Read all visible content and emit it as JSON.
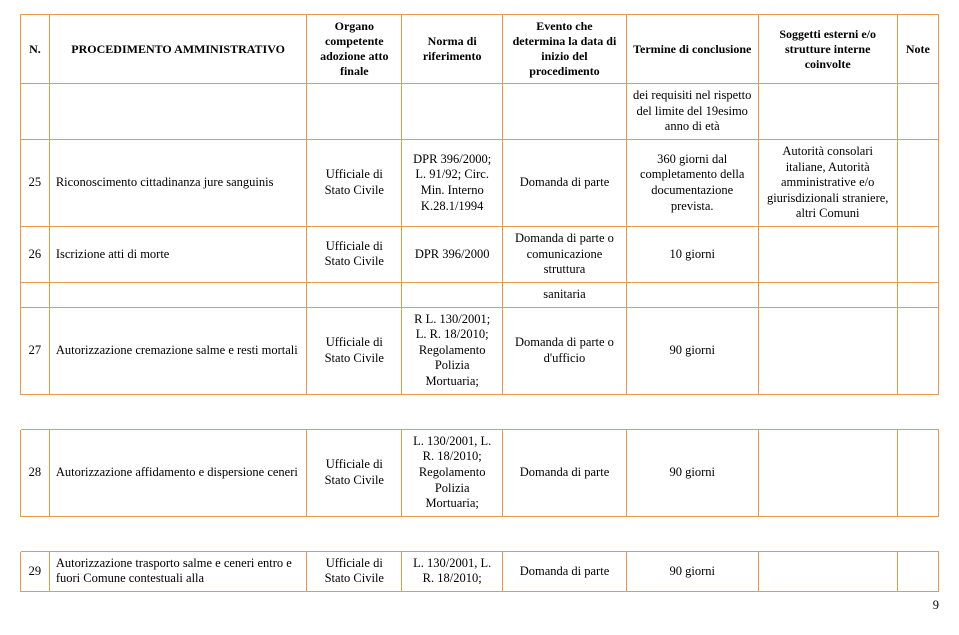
{
  "colors": {
    "border": "#e69a4a",
    "text": "#000000",
    "bg": "#ffffff"
  },
  "typography": {
    "family": "Times New Roman",
    "base_size_pt": 9.5,
    "header_weight": "bold"
  },
  "table": {
    "headers": {
      "n": "N.",
      "proc": "PROCEDIMENTO AMMINISTRATIVO",
      "org": "Organo competente adozione atto finale",
      "norma": "Norma di riferimento",
      "ev": "Evento che determina la data di inizio del procedimento",
      "term": "Termine di conclusione",
      "sog": "Soggetti esterni e/o strutture interne coinvolte",
      "note": "Note"
    },
    "continuation": {
      "term": "dei requisiti nel rispetto del limite del 19esimo anno di età"
    },
    "rows": [
      {
        "n": "25",
        "proc": "Riconoscimento cittadinanza jure sanguinis",
        "org": "Ufficiale di Stato Civile",
        "norma": "DPR 396/2000; L. 91/92; Circ. Min. Interno K.28.1/1994",
        "ev": "Domanda di parte",
        "term": "360  giorni dal completamento della documentazione prevista.",
        "sog": "Autorità consolari italiane, Autorità amministrative e/o giurisdizionali straniere, altri Comuni",
        "note": ""
      },
      {
        "n": "26",
        "proc": "Iscrizione atti di morte",
        "org": "Ufficiale di Stato Civile",
        "norma": "DPR 396/2000",
        "ev": "Domanda di parte o comunicazione struttura",
        "term": "10 giorni",
        "sog": "",
        "note": ""
      },
      {
        "n": "",
        "proc": "",
        "org": "",
        "norma": "",
        "ev": "sanitaria",
        "term": "",
        "sog": "",
        "note": ""
      },
      {
        "n": "27",
        "proc": "Autorizzazione cremazione salme e resti mortali",
        "org": "Ufficiale di Stato Civile",
        "norma": "R L. 130/2001; L. R. 18/2010; Regolamento Polizia Mortuaria;",
        "ev": "Domanda di parte o d'ufficio",
        "term": "90 giorni",
        "sog": "",
        "note": ""
      },
      {
        "n": "28",
        "proc": "Autorizzazione affidamento e dispersione ceneri",
        "org": "Ufficiale di Stato Civile",
        "norma": "L. 130/2001, L. R. 18/2010; Regolamento Polizia Mortuaria;",
        "ev": "Domanda di parte",
        "term": "90 giorni",
        "sog": "",
        "note": ""
      },
      {
        "n": "29",
        "proc": "Autorizzazione trasporto salme e ceneri entro e fuori Comune contestuali alla",
        "org": "Ufficiale di Stato Civile",
        "norma": "L. 130/2001, L. R. 18/2010;",
        "ev": "Domanda di parte",
        "term": "90 giorni",
        "sog": "",
        "note": ""
      }
    ]
  },
  "page_number": "9"
}
